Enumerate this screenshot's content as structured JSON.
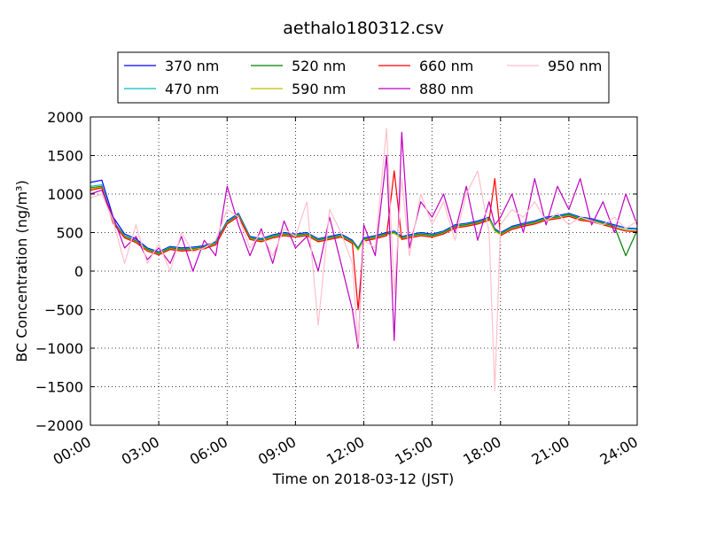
{
  "chart_data": {
    "type": "line",
    "title": "aethalo180312.csv",
    "xlabel": "Time on 2018-03-12 (JST)",
    "ylabel": "BC Concentration (ng/m³)",
    "xlim": [
      "00:00",
      "24:00"
    ],
    "ylim": [
      -2000,
      2000
    ],
    "x_tick_labels": [
      "00:00",
      "03:00",
      "06:00",
      "09:00",
      "12:00",
      "15:00",
      "18:00",
      "21:00",
      "24:00"
    ],
    "y_tick_labels": [
      "−2000",
      "−1500",
      "−1000",
      "−500",
      "0",
      "500",
      "1000",
      "1500",
      "2000"
    ],
    "grid": true,
    "legend_position": "top-center, above plot",
    "x": [
      "00:00",
      "00:30",
      "01:00",
      "01:30",
      "02:00",
      "02:30",
      "03:00",
      "03:30",
      "04:00",
      "04:30",
      "05:00",
      "05:30",
      "06:00",
      "06:30",
      "07:00",
      "07:30",
      "08:00",
      "08:30",
      "09:00",
      "09:30",
      "10:00",
      "10:30",
      "11:00",
      "11:30",
      "11:45",
      "12:00",
      "12:30",
      "13:00",
      "13:20",
      "13:40",
      "14:00",
      "14:30",
      "15:00",
      "15:30",
      "16:00",
      "16:30",
      "17:00",
      "17:30",
      "17:45",
      "18:00",
      "18:30",
      "19:00",
      "19:30",
      "20:00",
      "20:30",
      "21:00",
      "21:30",
      "22:00",
      "22:30",
      "23:00",
      "23:30",
      "24:00"
    ],
    "series": [
      {
        "name": "370 nm",
        "color": "#0000ff",
        "values": [
          1150,
          1180,
          700,
          480,
          420,
          300,
          250,
          320,
          300,
          310,
          330,
          380,
          650,
          750,
          450,
          420,
          470,
          500,
          480,
          500,
          420,
          450,
          480,
          400,
          300,
          430,
          460,
          500,
          520,
          450,
          470,
          500,
          480,
          520,
          600,
          620,
          650,
          700,
          550,
          500,
          580,
          620,
          650,
          700,
          720,
          750,
          700,
          680,
          640,
          600,
          560,
          550
        ]
      },
      {
        "name": "470 nm",
        "color": "#00bfbf",
        "values": [
          1100,
          1120,
          650,
          460,
          400,
          290,
          240,
          310,
          290,
          300,
          320,
          370,
          640,
          740,
          440,
          410,
          460,
          490,
          470,
          490,
          410,
          440,
          470,
          390,
          290,
          420,
          450,
          490,
          510,
          440,
          460,
          490,
          470,
          510,
          590,
          610,
          640,
          690,
          540,
          490,
          570,
          610,
          640,
          690,
          710,
          740,
          690,
          670,
          630,
          590,
          550,
          540
        ]
      },
      {
        "name": "520 nm",
        "color": "#008000",
        "values": [
          1080,
          1100,
          640,
          450,
          390,
          280,
          230,
          300,
          280,
          290,
          310,
          360,
          630,
          730,
          430,
          400,
          450,
          480,
          460,
          480,
          400,
          430,
          460,
          380,
          280,
          410,
          440,
          480,
          500,
          430,
          450,
          480,
          460,
          500,
          580,
          600,
          630,
          680,
          530,
          480,
          560,
          600,
          630,
          680,
          700,
          730,
          680,
          660,
          620,
          580,
          200,
          530
        ]
      },
      {
        "name": "590 nm",
        "color": "#bfbf00",
        "values": [
          1070,
          1090,
          630,
          440,
          380,
          270,
          220,
          290,
          270,
          280,
          300,
          350,
          620,
          720,
          420,
          390,
          440,
          470,
          450,
          470,
          390,
          420,
          450,
          370,
          270,
          400,
          430,
          470,
          490,
          420,
          440,
          470,
          450,
          490,
          570,
          590,
          620,
          670,
          520,
          470,
          550,
          590,
          620,
          670,
          690,
          720,
          670,
          650,
          610,
          570,
          530,
          520
        ]
      },
      {
        "name": "660 nm",
        "color": "#ff0000",
        "values": [
          1050,
          1080,
          620,
          430,
          370,
          260,
          210,
          280,
          260,
          270,
          290,
          340,
          610,
          710,
          410,
          380,
          430,
          460,
          440,
          460,
          380,
          410,
          440,
          360,
          -500,
          390,
          420,
          460,
          1300,
          410,
          430,
          460,
          440,
          480,
          560,
          580,
          610,
          660,
          1200,
          460,
          540,
          580,
          610,
          660,
          680,
          710,
          660,
          640,
          600,
          560,
          520,
          510
        ]
      },
      {
        "name": "880 nm",
        "color": "#bf00bf",
        "values": [
          1000,
          1050,
          700,
          300,
          450,
          150,
          300,
          100,
          450,
          0,
          400,
          200,
          1100,
          600,
          200,
          550,
          100,
          650,
          300,
          450,
          0,
          700,
          100,
          -500,
          -1000,
          600,
          200,
          1500,
          -900,
          1800,
          300,
          900,
          700,
          1000,
          500,
          1100,
          400,
          900,
          600,
          700,
          1000,
          500,
          1200,
          600,
          1100,
          800,
          1200,
          600,
          900,
          500,
          1000,
          600
        ]
      },
      {
        "name": "950 nm",
        "color": "#ffc0cb",
        "values": [
          950,
          1000,
          650,
          100,
          600,
          100,
          350,
          0,
          500,
          250,
          300,
          400,
          800,
          700,
          300,
          500,
          200,
          550,
          450,
          900,
          -700,
          800,
          500,
          100,
          -950,
          400,
          300,
          1850,
          -300,
          1200,
          200,
          1000,
          600,
          900,
          400,
          1000,
          1300,
          500,
          -1550,
          600,
          800,
          700,
          900,
          650,
          750,
          600,
          700,
          650,
          600,
          700,
          550,
          650
        ]
      }
    ]
  }
}
